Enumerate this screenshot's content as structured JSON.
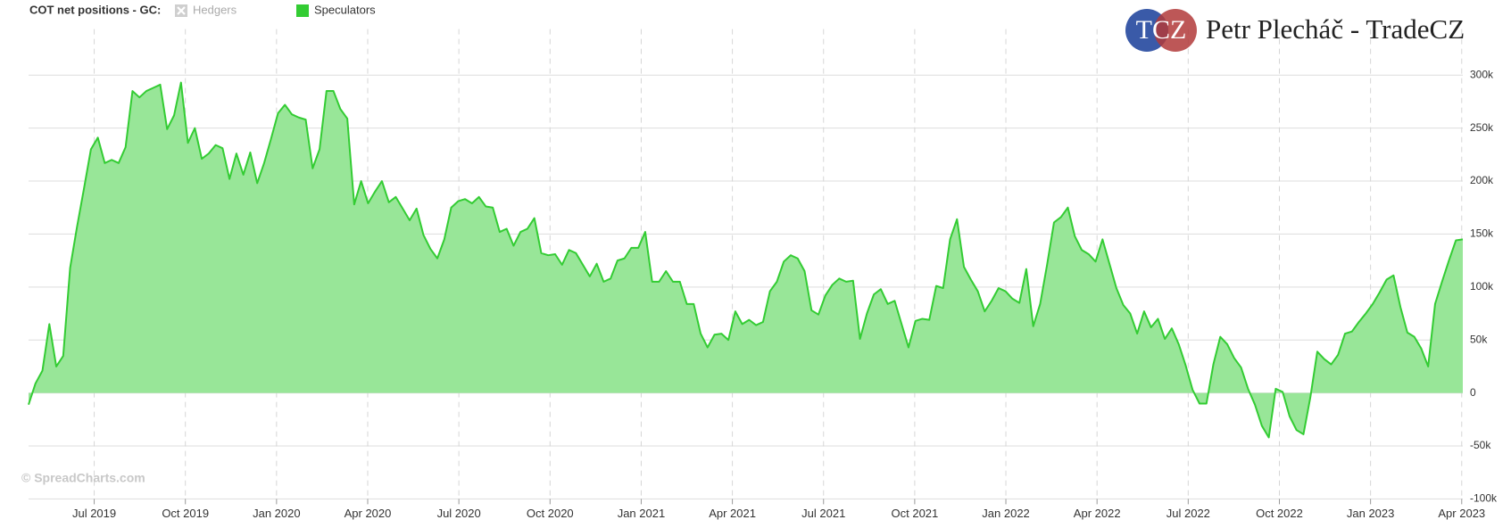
{
  "chart_data": {
    "type": "area",
    "title": "COT net positions - GC:",
    "watermark": "© SpreadCharts.com",
    "brand": {
      "logo": "TCZ",
      "name": "Petr Plecháč - TradeCZ"
    },
    "hidden_series": [
      {
        "name": "Hedgers",
        "color": "#bbbbbb"
      }
    ],
    "series": [
      {
        "name": "Speculators",
        "color": "#33cc33",
        "fill": "#98e698",
        "x": [
          2019.32,
          2019.339,
          2019.358,
          2019.377,
          2019.396,
          2019.415,
          2019.434,
          2019.453,
          2019.472,
          2019.491,
          2019.51,
          2019.529,
          2019.548,
          2019.567,
          2019.586,
          2019.605,
          2019.624,
          2019.643,
          2019.662,
          2019.681,
          2019.7,
          2019.719,
          2019.738,
          2019.757,
          2019.776,
          2019.795,
          2019.814,
          2019.833,
          2019.852,
          2019.871,
          2019.89,
          2019.909,
          2019.928,
          2019.947,
          2019.966,
          2019.985,
          2020.004,
          2020.023,
          2020.042,
          2020.061,
          2020.08,
          2020.099,
          2020.118,
          2020.137,
          2020.156,
          2020.175,
          2020.194,
          2020.213,
          2020.232,
          2020.251,
          2020.27,
          2020.289,
          2020.308,
          2020.327,
          2020.346,
          2020.365,
          2020.384,
          2020.403,
          2020.422,
          2020.441,
          2020.46,
          2020.479,
          2020.498,
          2020.517,
          2020.536,
          2020.555,
          2020.574,
          2020.593,
          2020.612,
          2020.631,
          2020.65,
          2020.669,
          2020.688,
          2020.707,
          2020.726,
          2020.745,
          2020.764,
          2020.783,
          2020.802,
          2020.821,
          2020.84,
          2020.859,
          2020.878,
          2020.897,
          2020.916,
          2020.935,
          2020.954,
          2020.973,
          2020.992,
          2021.011,
          2021.03,
          2021.049,
          2021.068,
          2021.087,
          2021.106,
          2021.125,
          2021.144,
          2021.163,
          2021.182,
          2021.201,
          2021.22,
          2021.239,
          2021.258,
          2021.277,
          2021.296,
          2021.315,
          2021.334,
          2021.353,
          2021.372,
          2021.391,
          2021.41,
          2021.429,
          2021.448,
          2021.467,
          2021.486,
          2021.505,
          2021.524,
          2021.543,
          2021.562,
          2021.581,
          2021.6,
          2021.619,
          2021.638,
          2021.657,
          2021.676,
          2021.695,
          2021.714,
          2021.733,
          2021.752,
          2021.771,
          2021.79,
          2021.809,
          2021.828,
          2021.847,
          2021.866,
          2021.885,
          2021.904,
          2021.923,
          2021.942,
          2021.961,
          2021.98,
          2021.999,
          2022.018,
          2022.037,
          2022.056,
          2022.075,
          2022.094,
          2022.113,
          2022.132,
          2022.151,
          2022.17,
          2022.189,
          2022.208,
          2022.227,
          2022.246,
          2022.265,
          2022.284,
          2022.303,
          2022.322,
          2022.341,
          2022.36,
          2022.379,
          2022.398,
          2022.417,
          2022.436,
          2022.455,
          2022.474,
          2022.493,
          2022.512,
          2022.531,
          2022.55,
          2022.569,
          2022.588,
          2022.607,
          2022.626,
          2022.645,
          2022.664,
          2022.683,
          2022.702,
          2022.721,
          2022.74,
          2022.759,
          2022.778,
          2022.797,
          2022.816,
          2022.835,
          2022.854,
          2022.873,
          2022.892,
          2022.911,
          2022.93,
          2022.949,
          2022.968,
          2022.987,
          2023.006,
          2023.025,
          2023.044,
          2023.063,
          2023.082,
          2023.101,
          2023.12,
          2023.139,
          2023.158,
          2023.177,
          2023.196,
          2023.215,
          2023.234,
          2023.253
        ],
        "values": [
          -11000,
          9000,
          21000,
          65000,
          25000,
          35000,
          118000,
          157000,
          193000,
          230000,
          241000,
          217000,
          220000,
          217000,
          232000,
          285000,
          279000,
          285000,
          288000,
          291000,
          249000,
          262000,
          293000,
          236000,
          250000,
          221000,
          226000,
          234000,
          231000,
          202000,
          226000,
          206000,
          227000,
          198000,
          217000,
          240000,
          264000,
          272000,
          263000,
          260000,
          258000,
          212000,
          230000,
          285000,
          285000,
          268000,
          259000,
          178000,
          200000,
          179000,
          190000,
          200000,
          180000,
          185000,
          174000,
          163000,
          174000,
          149000,
          136000,
          127000,
          145000,
          175000,
          181000,
          183000,
          179000,
          185000,
          176000,
          175000,
          152000,
          155000,
          139000,
          152000,
          155000,
          165000,
          132000,
          130000,
          131000,
          121000,
          135000,
          132000,
          121000,
          110000,
          122000,
          105000,
          108000,
          125000,
          127000,
          137000,
          137000,
          152000,
          105000,
          105000,
          115000,
          105000,
          105000,
          84000,
          84000,
          56000,
          43000,
          55000,
          56000,
          50000,
          77000,
          65000,
          69000,
          64000,
          67000,
          96000,
          105000,
          124000,
          130000,
          127000,
          115000,
          78000,
          74000,
          92000,
          102000,
          108000,
          105000,
          106000,
          51000,
          75000,
          93000,
          98000,
          84000,
          87000,
          65000,
          43000,
          68000,
          70000,
          69000,
          101000,
          99000,
          145000,
          164000,
          119000,
          107000,
          96000,
          77000,
          87000,
          99000,
          96000,
          89000,
          85000,
          117000,
          63000,
          84000,
          121000,
          161000,
          166000,
          175000,
          148000,
          135000,
          131000,
          124000,
          145000,
          122000,
          99000,
          83000,
          75000,
          56000,
          77000,
          62000,
          70000,
          51000,
          61000,
          46000,
          26000,
          3000,
          -10000,
          -10000,
          27000,
          53000,
          46000,
          33000,
          24000,
          4000,
          -11000,
          -31000,
          -42000,
          4000,
          1000,
          -22000,
          -35000,
          -39000,
          -4000,
          39000,
          32000,
          27000,
          36000,
          56000,
          58000,
          67000,
          75000,
          84000,
          95000,
          107000,
          111000,
          81000,
          57000,
          53000,
          42000,
          25000,
          84000,
          105000,
          125000,
          144000,
          145000
        ]
      }
    ],
    "xlim": [
      2019.32,
      2023.253
    ],
    "xticks": [
      {
        "value": 2019.5,
        "label": "Jul 2019"
      },
      {
        "value": 2019.75,
        "label": "Oct 2019"
      },
      {
        "value": 2020.0,
        "label": "Jan 2020"
      },
      {
        "value": 2020.25,
        "label": "Apr 2020"
      },
      {
        "value": 2020.5,
        "label": "Jul 2020"
      },
      {
        "value": 2020.75,
        "label": "Oct 2020"
      },
      {
        "value": 2021.0,
        "label": "Jan 2021"
      },
      {
        "value": 2021.25,
        "label": "Apr 2021"
      },
      {
        "value": 2021.5,
        "label": "Jul 2021"
      },
      {
        "value": 2021.75,
        "label": "Oct 2021"
      },
      {
        "value": 2022.0,
        "label": "Jan 2022"
      },
      {
        "value": 2022.25,
        "label": "Apr 2022"
      },
      {
        "value": 2022.5,
        "label": "Jul 2022"
      },
      {
        "value": 2022.75,
        "label": "Oct 2022"
      },
      {
        "value": 2023.0,
        "label": "Jan 2023"
      },
      {
        "value": 2023.25,
        "label": "Apr 2023"
      }
    ],
    "ylim": [
      -100000,
      330000
    ],
    "yticks": [
      {
        "value": -100000,
        "label": "-100k"
      },
      {
        "value": -50000,
        "label": "-50k"
      },
      0,
      {
        "value": 50000,
        "label": "50k"
      },
      {
        "value": 100000,
        "label": "100k"
      },
      {
        "value": 150000,
        "label": "150k"
      },
      {
        "value": 200000,
        "label": "200k"
      },
      {
        "value": 250000,
        "label": "250k"
      },
      {
        "value": 300000,
        "label": "300k"
      }
    ],
    "y_axis_side": "right",
    "grid": true
  }
}
